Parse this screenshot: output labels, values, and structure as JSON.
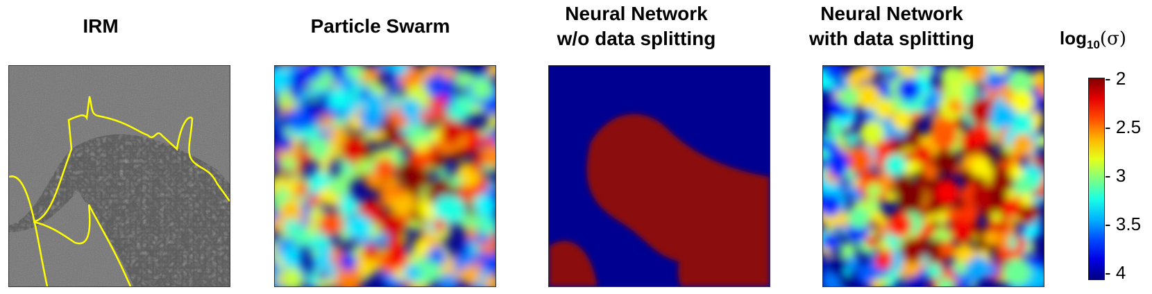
{
  "panels": [
    {
      "title": "IRM",
      "kind": "microscopy"
    },
    {
      "title": "Particle Swarm",
      "kind": "heatmap"
    },
    {
      "title_line1": "Neural Network",
      "title_line2": "w/o data splitting",
      "kind": "heatmap"
    },
    {
      "title_line1": "Neural Network",
      "title_line2": "with data splitting",
      "kind": "heatmap"
    }
  ],
  "colorbar": {
    "title_prefix": "log",
    "title_base": "10",
    "title_symbol": "(σ)",
    "ticks": [
      "- 2",
      "- 2.5",
      "- 3",
      "- 3.5",
      "- 4"
    ],
    "range": [
      -4,
      -2
    ],
    "colormap": "jet"
  },
  "colors": {
    "outline": "#ffff00",
    "jet_low": "#00007f",
    "jet_high": "#7f0000"
  }
}
